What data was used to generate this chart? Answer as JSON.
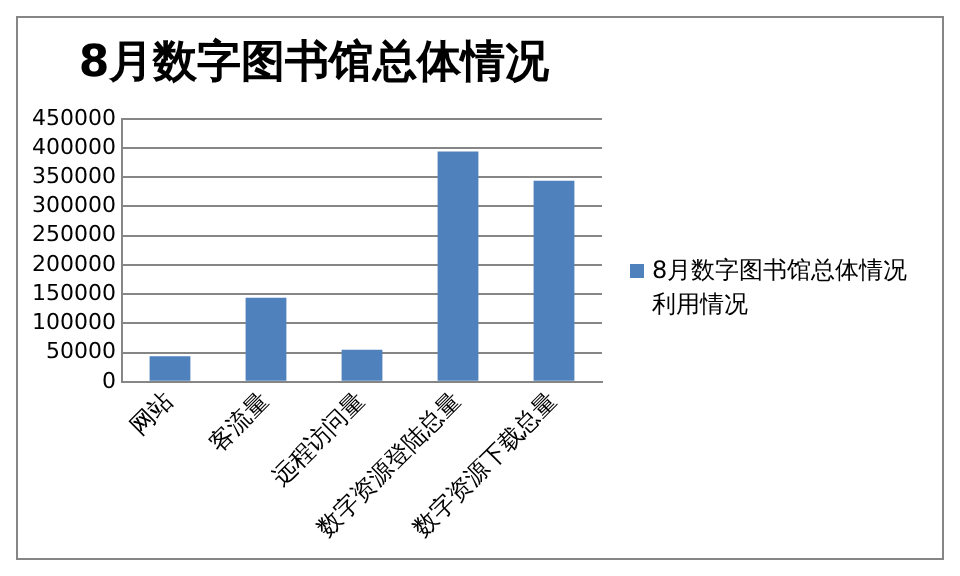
{
  "chart_data": {
    "type": "bar",
    "title": "8月数字图书馆总体情况",
    "categories": [
      "网站",
      "客流量",
      "远程访问量",
      "数字资源登陆总量",
      "数字资源下载总量"
    ],
    "series": [
      {
        "name": "8月数字图书馆总体情况利用情况",
        "color": "#4f81bd",
        "values": [
          44000,
          144000,
          55000,
          394000,
          344000
        ]
      }
    ],
    "ylim": [
      0,
      450000
    ],
    "yticks": [
      0,
      50000,
      100000,
      150000,
      200000,
      250000,
      300000,
      350000,
      400000,
      450000
    ],
    "grid": "y",
    "legend": "right"
  }
}
